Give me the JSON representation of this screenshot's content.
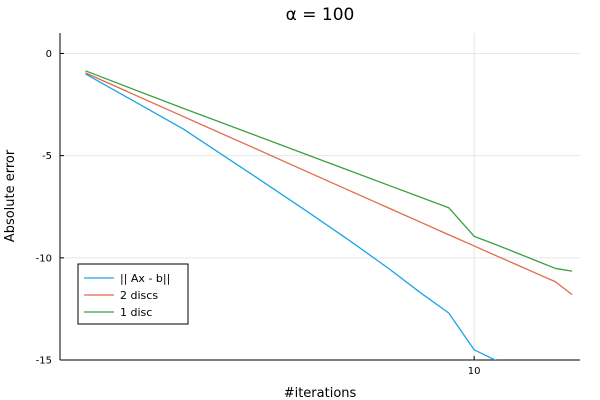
{
  "chart_data": {
    "type": "line",
    "title": "α =  100",
    "xlabel": "#iterations",
    "ylabel": "Absolute error",
    "xscale": "log",
    "xlim": [
      1.8,
      15.5
    ],
    "ylim": [
      -15,
      1
    ],
    "x_ticks": [
      10
    ],
    "x_tick_labels": [
      "10"
    ],
    "y_ticks": [
      0,
      -5,
      -10,
      -15
    ],
    "y_tick_labels": [
      "0",
      "-5",
      "-10",
      "-15"
    ],
    "grid": true,
    "legend_position": "bottom-left",
    "series": [
      {
        "name": "|| Ax - b||",
        "color": "#1ea3e8",
        "x": [
          2,
          3,
          4,
          5,
          6,
          7,
          8,
          9,
          10,
          11
        ],
        "y": [
          -1.0,
          -3.7,
          -5.95,
          -7.72,
          -9.2,
          -10.5,
          -11.7,
          -12.7,
          -14.5,
          -15.05
        ]
      },
      {
        "name": "2 discs",
        "color": "#e2694a",
        "x": [
          2,
          3,
          4,
          5,
          6,
          7,
          8,
          9,
          10,
          11,
          12,
          13,
          14,
          15
        ],
        "y": [
          -0.95,
          -3.09,
          -4.6,
          -5.78,
          -6.74,
          -7.55,
          -8.25,
          -8.87,
          -9.42,
          -9.92,
          -10.37,
          -10.79,
          -11.17,
          -11.8
        ]
      },
      {
        "name": "1 disc",
        "color": "#3ba041",
        "x": [
          2,
          3,
          4,
          5,
          6,
          7,
          8,
          9,
          10,
          11,
          12,
          13,
          14,
          15
        ],
        "y": [
          -0.85,
          -2.69,
          -3.96,
          -4.95,
          -5.76,
          -6.44,
          -7.03,
          -7.55,
          -8.95,
          -9.38,
          -9.79,
          -10.17,
          -10.52,
          -10.65
        ]
      }
    ]
  }
}
